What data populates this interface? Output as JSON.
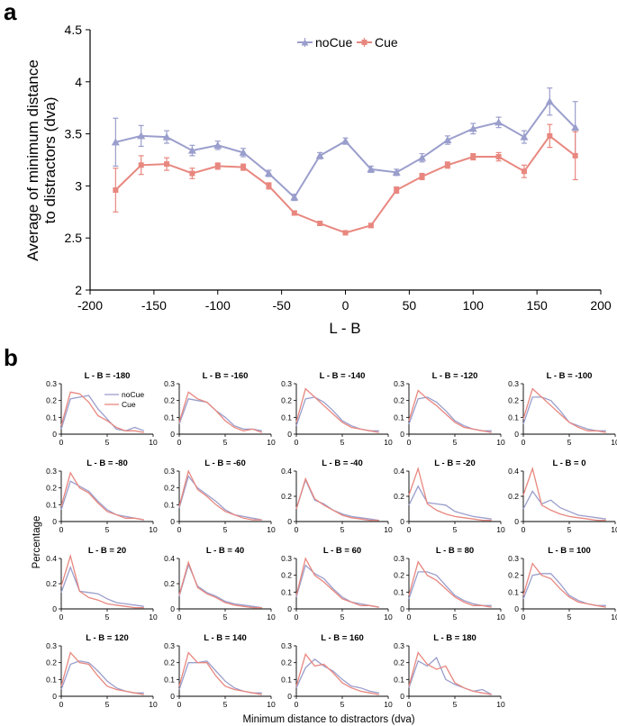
{
  "panel_labels": {
    "a": "a",
    "b": "b"
  },
  "colors": {
    "noCue": "#9A9ECC",
    "Cue": "#E8877F"
  },
  "chart_data": [
    {
      "type": "line",
      "panel": "a",
      "title": "",
      "xlabel": "L - B",
      "ylabel_line1": "Average of minimum distance",
      "ylabel_line2": "to distractors (dva)",
      "xlim": [
        -200,
        200
      ],
      "ylim": [
        2,
        4.5
      ],
      "xticks": [
        "-200",
        "-150",
        "-100",
        "-50",
        "0",
        "50",
        "100",
        "150",
        "200"
      ],
      "yticks": [
        "2",
        "2.5",
        "3",
        "3.5",
        "4",
        "4.5"
      ],
      "legend": [
        "noCue",
        "Cue"
      ],
      "legend_position": "top-center",
      "x": [
        -180,
        -160,
        -140,
        -120,
        -100,
        -80,
        -60,
        -40,
        -20,
        0,
        20,
        40,
        60,
        80,
        100,
        120,
        140,
        160,
        180
      ],
      "series": [
        {
          "name": "noCue",
          "values": [
            3.42,
            3.48,
            3.47,
            3.34,
            3.39,
            3.32,
            3.12,
            2.89,
            3.29,
            3.43,
            3.16,
            3.13,
            3.27,
            3.44,
            3.55,
            3.61,
            3.47,
            3.81,
            3.56
          ],
          "errors": [
            0.23,
            0.1,
            0.06,
            0.05,
            0.04,
            0.04,
            0.03,
            0.03,
            0.03,
            0.03,
            0.03,
            0.03,
            0.04,
            0.04,
            0.05,
            0.05,
            0.06,
            0.13,
            0.25
          ]
        },
        {
          "name": "Cue",
          "values": [
            2.96,
            3.2,
            3.21,
            3.12,
            3.19,
            3.18,
            3.0,
            2.74,
            2.64,
            2.55,
            2.62,
            2.96,
            3.09,
            3.2,
            3.28,
            3.28,
            3.14,
            3.48,
            3.29
          ],
          "errors": [
            0.21,
            0.09,
            0.06,
            0.05,
            0.03,
            0.03,
            0.03,
            0.02,
            0.02,
            0.02,
            0.02,
            0.03,
            0.03,
            0.03,
            0.03,
            0.04,
            0.06,
            0.11,
            0.23
          ]
        }
      ]
    },
    {
      "type": "line",
      "panel": "b",
      "layout": "small multiples",
      "xlabel": "Minimum distance to distractors (dva)",
      "ylabel": "Percentage",
      "xticks": [
        "0",
        "5",
        "10"
      ],
      "legend": [
        "noCue",
        "Cue"
      ],
      "x": [
        0,
        1,
        2,
        3,
        4,
        5,
        6,
        7,
        8,
        9
      ],
      "subplots": [
        {
          "title": "L - B = -180",
          "ymax": 0.3,
          "yticks": [
            "0",
            "0.1",
            "0.2",
            "0.3"
          ],
          "noCue": [
            0.03,
            0.21,
            0.22,
            0.23,
            0.15,
            0.09,
            0.03,
            0.02,
            0.04,
            0.02
          ],
          "Cue": [
            0.05,
            0.25,
            0.24,
            0.19,
            0.11,
            0.08,
            0.04,
            0.02,
            0.02,
            0.01
          ]
        },
        {
          "title": "L - B = -160",
          "ymax": 0.3,
          "yticks": [
            "0",
            "0.1",
            "0.2",
            "0.3"
          ],
          "noCue": [
            0.06,
            0.21,
            0.2,
            0.19,
            0.14,
            0.1,
            0.05,
            0.03,
            0.03,
            0.02
          ],
          "Cue": [
            0.07,
            0.25,
            0.21,
            0.19,
            0.14,
            0.08,
            0.04,
            0.02,
            0.03,
            0.01
          ]
        },
        {
          "title": "L - B = -140",
          "ymax": 0.3,
          "yticks": [
            "0",
            "0.1",
            "0.2",
            "0.3"
          ],
          "noCue": [
            0.05,
            0.21,
            0.22,
            0.19,
            0.14,
            0.08,
            0.05,
            0.03,
            0.02,
            0.02
          ],
          "Cue": [
            0.07,
            0.27,
            0.22,
            0.17,
            0.12,
            0.07,
            0.04,
            0.03,
            0.02,
            0.01
          ]
        },
        {
          "title": "L - B = -120",
          "ymax": 0.3,
          "yticks": [
            "0",
            "0.1",
            "0.2",
            "0.3"
          ],
          "noCue": [
            0.06,
            0.21,
            0.22,
            0.19,
            0.14,
            0.08,
            0.05,
            0.03,
            0.02,
            0.02
          ],
          "Cue": [
            0.08,
            0.26,
            0.21,
            0.17,
            0.12,
            0.07,
            0.04,
            0.03,
            0.02,
            0.01
          ]
        },
        {
          "title": "L - B = -100",
          "ymax": 0.3,
          "yticks": [
            "0",
            "0.1",
            "0.2",
            "0.3"
          ],
          "noCue": [
            0.06,
            0.22,
            0.22,
            0.2,
            0.14,
            0.07,
            0.05,
            0.03,
            0.02,
            0.02
          ],
          "Cue": [
            0.09,
            0.27,
            0.22,
            0.17,
            0.12,
            0.07,
            0.04,
            0.02,
            0.02,
            0.01
          ]
        },
        {
          "title": "L - B = -80",
          "ymax": 0.3,
          "yticks": [
            "0",
            "0.1",
            "0.2",
            "0.3"
          ],
          "noCue": [
            0.07,
            0.24,
            0.21,
            0.18,
            0.12,
            0.07,
            0.04,
            0.03,
            0.02,
            0.01
          ],
          "Cue": [
            0.09,
            0.29,
            0.2,
            0.17,
            0.11,
            0.06,
            0.04,
            0.02,
            0.02,
            0.01
          ]
        },
        {
          "title": "L - B = -60",
          "ymax": 0.3,
          "yticks": [
            "0",
            "0.1",
            "0.2",
            "0.3"
          ],
          "noCue": [
            0.08,
            0.27,
            0.2,
            0.16,
            0.12,
            0.07,
            0.04,
            0.03,
            0.02,
            0.01
          ],
          "Cue": [
            0.09,
            0.3,
            0.19,
            0.15,
            0.1,
            0.06,
            0.04,
            0.02,
            0.01,
            0.01
          ]
        },
        {
          "title": "L - B = -40",
          "ymax": 0.4,
          "yticks": [
            "0",
            "0.2",
            "0.4"
          ],
          "noCue": [
            0.1,
            0.33,
            0.17,
            0.14,
            0.09,
            0.06,
            0.04,
            0.03,
            0.02,
            0.01
          ],
          "Cue": [
            0.1,
            0.34,
            0.18,
            0.13,
            0.09,
            0.05,
            0.03,
            0.02,
            0.01,
            0.01
          ]
        },
        {
          "title": "L - B = -20",
          "ymax": 0.4,
          "yticks": [
            "0",
            "0.2",
            "0.4"
          ],
          "noCue": [
            0.13,
            0.28,
            0.15,
            0.14,
            0.13,
            0.08,
            0.06,
            0.04,
            0.03,
            0.02
          ],
          "Cue": [
            0.21,
            0.42,
            0.14,
            0.09,
            0.06,
            0.04,
            0.03,
            0.02,
            0.01,
            0.01
          ]
        },
        {
          "title": "L - B = 0",
          "ymax": 0.4,
          "yticks": [
            "0",
            "0.2",
            "0.4"
          ],
          "noCue": [
            0.1,
            0.24,
            0.14,
            0.17,
            0.11,
            0.08,
            0.05,
            0.04,
            0.03,
            0.02
          ],
          "Cue": [
            0.21,
            0.42,
            0.13,
            0.09,
            0.06,
            0.04,
            0.03,
            0.02,
            0.01,
            0.01
          ]
        },
        {
          "title": "L - B = 20",
          "ymax": 0.4,
          "yticks": [
            "0",
            "0.2",
            "0.4"
          ],
          "noCue": [
            0.13,
            0.33,
            0.14,
            0.13,
            0.12,
            0.08,
            0.05,
            0.04,
            0.03,
            0.02
          ],
          "Cue": [
            0.18,
            0.42,
            0.14,
            0.09,
            0.07,
            0.04,
            0.03,
            0.02,
            0.01,
            0.01
          ]
        },
        {
          "title": "L - B = 40",
          "ymax": 0.4,
          "yticks": [
            "0",
            "0.2",
            "0.4"
          ],
          "noCue": [
            0.1,
            0.35,
            0.18,
            0.13,
            0.1,
            0.06,
            0.04,
            0.03,
            0.02,
            0.01
          ],
          "Cue": [
            0.11,
            0.37,
            0.17,
            0.12,
            0.09,
            0.05,
            0.03,
            0.02,
            0.01,
            0.01
          ]
        },
        {
          "title": "L - B = 60",
          "ymax": 0.3,
          "yticks": [
            "0",
            "0.1",
            "0.2",
            "0.3"
          ],
          "noCue": [
            0.07,
            0.26,
            0.21,
            0.18,
            0.12,
            0.07,
            0.04,
            0.03,
            0.02,
            0.01
          ],
          "Cue": [
            0.08,
            0.3,
            0.2,
            0.16,
            0.11,
            0.06,
            0.04,
            0.02,
            0.02,
            0.01
          ]
        },
        {
          "title": "L - B = 80",
          "ymax": 0.3,
          "yticks": [
            "0",
            "0.1",
            "0.2",
            "0.3"
          ],
          "noCue": [
            0.06,
            0.22,
            0.22,
            0.2,
            0.14,
            0.08,
            0.05,
            0.03,
            0.02,
            0.02
          ],
          "Cue": [
            0.08,
            0.28,
            0.2,
            0.17,
            0.12,
            0.07,
            0.04,
            0.02,
            0.02,
            0.01
          ]
        },
        {
          "title": "L - B = 100",
          "ymax": 0.3,
          "yticks": [
            "0",
            "0.1",
            "0.2",
            "0.3"
          ],
          "noCue": [
            0.06,
            0.2,
            0.21,
            0.21,
            0.15,
            0.08,
            0.05,
            0.03,
            0.02,
            0.02
          ],
          "Cue": [
            0.08,
            0.27,
            0.2,
            0.18,
            0.12,
            0.07,
            0.04,
            0.03,
            0.02,
            0.01
          ]
        },
        {
          "title": "L - B = 120",
          "ymax": 0.3,
          "yticks": [
            "0",
            "0.1",
            "0.2",
            "0.3"
          ],
          "noCue": [
            0.04,
            0.19,
            0.21,
            0.2,
            0.15,
            0.09,
            0.05,
            0.03,
            0.02,
            0.02
          ],
          "Cue": [
            0.06,
            0.26,
            0.2,
            0.19,
            0.12,
            0.06,
            0.04,
            0.03,
            0.02,
            0.01
          ]
        },
        {
          "title": "L - B = 140",
          "ymax": 0.3,
          "yticks": [
            "0",
            "0.1",
            "0.2",
            "0.3"
          ],
          "noCue": [
            0.04,
            0.2,
            0.2,
            0.21,
            0.15,
            0.09,
            0.05,
            0.03,
            0.02,
            0.02
          ],
          "Cue": [
            0.06,
            0.26,
            0.2,
            0.2,
            0.12,
            0.06,
            0.04,
            0.03,
            0.02,
            0.01
          ]
        },
        {
          "title": "L - B = 160",
          "ymax": 0.3,
          "yticks": [
            "0",
            "0.1",
            "0.2",
            "0.3"
          ],
          "noCue": [
            0.05,
            0.17,
            0.22,
            0.18,
            0.15,
            0.1,
            0.06,
            0.05,
            0.03,
            0.02
          ],
          "Cue": [
            0.06,
            0.25,
            0.18,
            0.19,
            0.14,
            0.08,
            0.05,
            0.03,
            0.02,
            0.01
          ]
        },
        {
          "title": "L - B = 180",
          "ymax": 0.3,
          "yticks": [
            "0",
            "0.1",
            "0.2",
            "0.3"
          ],
          "noCue": [
            0.05,
            0.21,
            0.18,
            0.23,
            0.1,
            0.07,
            0.05,
            0.03,
            0.04,
            0.01
          ],
          "Cue": [
            0.06,
            0.26,
            0.19,
            0.16,
            0.18,
            0.08,
            0.05,
            0.03,
            0.02,
            0.01
          ]
        }
      ]
    }
  ]
}
